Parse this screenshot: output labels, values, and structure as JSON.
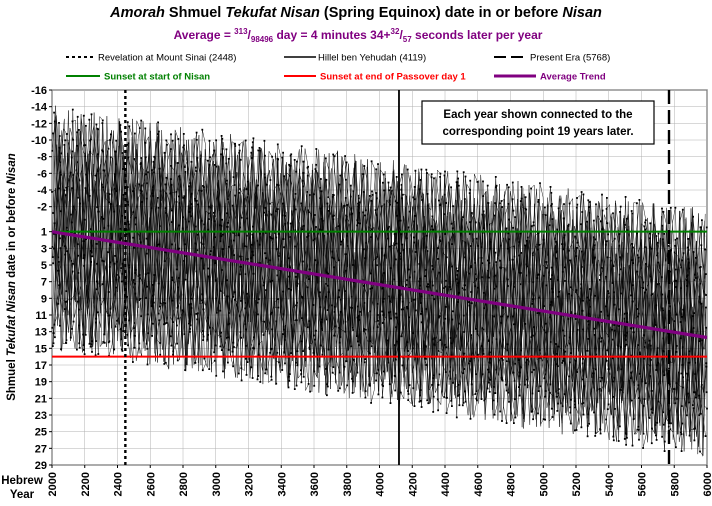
{
  "chart_data": {
    "type": "line",
    "title": {
      "part1": "Amorah",
      "part2": " Shmuel ",
      "part3": "Tekufat Nisan",
      "part4": " (Spring Equinox) date in or before ",
      "part5": "Nisan"
    },
    "subtitle": {
      "pre": "Average = ",
      "num1": "313",
      "slash1": "/",
      "den1": "98496",
      "mid": " day = 4 minutes 34+",
      "num2": "32",
      "slash2": "/",
      "den2": "57",
      "post": " seconds later per year"
    },
    "legend": {
      "sinai": "Revelation at Mount Sinai (2448)",
      "hillel": "Hillel ben Yehudah (4119)",
      "present": "Present Era (5768)",
      "sunset_start": "Sunset at start of Nisan",
      "sunset_end": "Sunset at end of Passover day 1",
      "average": "Average Trend"
    },
    "annotation": {
      "line1": "Each year shown connected to the",
      "line2": "corresponding point 19 years later."
    },
    "ylabel": {
      "part1": "Shmuel ",
      "part2": "Tekufat Nisan",
      "part3": " date in or before ",
      "part4": "Nisan"
    },
    "xlabel": {
      "line1": "Hebrew",
      "line2": "Year"
    },
    "x_range": [
      2000,
      6000
    ],
    "x_ticks": [
      2000,
      2200,
      2400,
      2600,
      2800,
      3000,
      3200,
      3400,
      3600,
      3800,
      4000,
      4200,
      4400,
      4600,
      4800,
      5000,
      5200,
      5400,
      5600,
      5800,
      6000
    ],
    "y_range": [
      -16,
      29
    ],
    "y_tick_values": [
      -16,
      -14,
      -12,
      -10,
      -8,
      -6,
      -4,
      -2,
      1,
      3,
      5,
      7,
      9,
      11,
      13,
      15,
      17,
      19,
      21,
      23,
      25,
      27,
      29
    ],
    "y_tick_labels": [
      "-16",
      "-14",
      "-12",
      "-10",
      "-8",
      "-6",
      "-4",
      "-2",
      "1",
      "3",
      "5",
      "7",
      "9",
      "11",
      "13",
      "15",
      "17",
      "19",
      "21",
      "23",
      "25",
      "27",
      "29"
    ],
    "vertical_lines": [
      {
        "name": "sinai",
        "x": 2448,
        "style": "dotted",
        "color": "#000000"
      },
      {
        "name": "hillel",
        "x": 4119,
        "style": "solid",
        "color": "#000000"
      },
      {
        "name": "present",
        "x": 5768,
        "style": "dashed",
        "color": "#000000"
      }
    ],
    "horizontal_lines": [
      {
        "name": "sunset_start",
        "y": 1,
        "color": "#008000"
      },
      {
        "name": "sunset_end",
        "y": 16,
        "color": "#ff0000"
      }
    ],
    "trend": {
      "x": [
        2000,
        6000
      ],
      "y": [
        1,
        13.7
      ],
      "color": "#800080"
    },
    "envelope": {
      "upper_start": -14.8,
      "upper_end": -2.3,
      "lower_start": 15.8,
      "lower_end": 29
    },
    "colors": {
      "green": "#008000",
      "red": "#ff0000",
      "purple": "#800080",
      "data": "#000000"
    }
  }
}
